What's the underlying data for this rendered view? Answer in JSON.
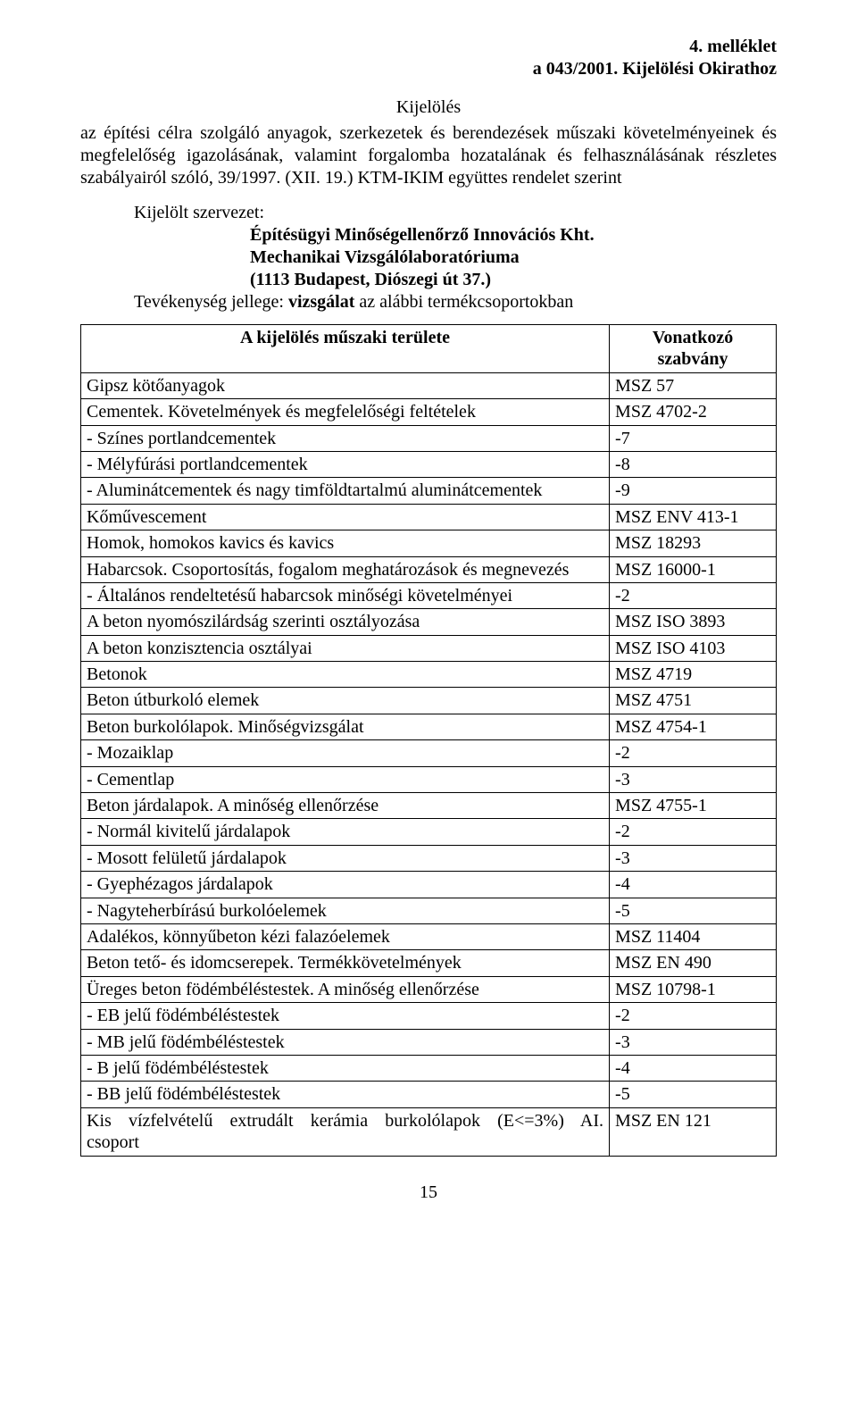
{
  "header": {
    "line1": "4. melléklet",
    "line2": "a 043/2001. Kijelölési Okirathoz"
  },
  "title": "Kijelölés",
  "intro": "az építési célra szolgáló anyagok, szerkezetek és berendezések műszaki követelményeinek és megfelelőség igazolásának, valamint forgalomba hozatalának és felhasználásának részletes szabályairól szóló, 39/1997. (XII. 19.) KTM-IKIM együttes rendelet szerint",
  "org": {
    "label": "Kijelölt szervezet:",
    "name": "Építésügyi Minőségellenőrző Innovációs Kht.",
    "lab": "Mechanikai Vizsgálólaboratóriuma",
    "addr": "(1113 Budapest, Diószegi út 37.)"
  },
  "activity": {
    "prefix": "Tevékenység jellege: ",
    "bold": "vizsgálat",
    "suffix": " az alábbi termékcsoportokban"
  },
  "table": {
    "headers": {
      "col1": "A kijelölés műszaki területe",
      "col2_a": "Vonatkozó",
      "col2_b": "szabvány"
    },
    "rows": [
      {
        "c1": "Gipsz kötőanyagok",
        "c2": "MSZ 57"
      },
      {
        "c1": "Cementek. Követelmények és megfelelőségi feltételek",
        "c2": "MSZ 4702-2"
      },
      {
        "c1": "- Színes portlandcementek",
        "c2": "-7"
      },
      {
        "c1": "- Mélyfúrási portlandcementek",
        "c2": "-8"
      },
      {
        "c1": "- Aluminátcementek és nagy timföldtartalmú aluminátcementek",
        "c2": "-9"
      },
      {
        "c1": "Kőművescement",
        "c2": "MSZ ENV 413-1"
      },
      {
        "c1": "Homok, homokos kavics és kavics",
        "c2": "MSZ 18293"
      },
      {
        "c1": "Habarcsok. Csoportosítás, fogalom meghatározások és megnevezés",
        "c2": "MSZ 16000-1"
      },
      {
        "c1": "- Általános rendeltetésű habarcsok minőségi követelményei",
        "c2": "-2"
      },
      {
        "c1": "A beton nyomószilárdság szerinti osztályozása",
        "c2": "MSZ ISO 3893"
      },
      {
        "c1": "A beton konzisztencia osztályai",
        "c2": "MSZ ISO 4103"
      },
      {
        "c1": "Betonok",
        "c2": "MSZ 4719"
      },
      {
        "c1": "Beton útburkoló elemek",
        "c2": "MSZ 4751"
      },
      {
        "c1": "Beton burkolólapok. Minőségvizsgálat",
        "c2": "MSZ 4754-1"
      },
      {
        "c1": "- Mozaiklap",
        "c2": "-2"
      },
      {
        "c1": "- Cementlap",
        "c2": "-3"
      },
      {
        "c1": "Beton járdalapok. A minőség ellenőrzése",
        "c2": "MSZ 4755-1"
      },
      {
        "c1": "- Normál kivitelű járdalapok",
        "c2": "-2"
      },
      {
        "c1": "- Mosott felületű járdalapok",
        "c2": "-3"
      },
      {
        "c1": "- Gyephézagos járdalapok",
        "c2": "-4"
      },
      {
        "c1": "- Nagyteherbírású burkolóelemek",
        "c2": "-5"
      },
      {
        "c1": "Adalékos, könnyűbeton kézi falazóelemek",
        "c2": "MSZ 11404"
      },
      {
        "c1": "Beton tető- és idomcserepek. Termékkövetelmények",
        "c2": "MSZ EN 490"
      },
      {
        "c1": "Üreges beton födémbéléstestek. A minőség ellenőrzése",
        "c2": "MSZ 10798-1"
      },
      {
        "c1": "- EB jelű födémbéléstestek",
        "c2": "-2"
      },
      {
        "c1": "- MB jelű födémbéléstestek",
        "c2": "-3"
      },
      {
        "c1": "- B jelű födémbéléstestek",
        "c2": "-4"
      },
      {
        "c1": "- BB jelű födémbéléstestek",
        "c2": "-5"
      }
    ],
    "last_row": {
      "c1_line1": "Kis vízfelvételű extrudált kerámia burkolólapok (E<=3%) AI.",
      "c1_line2": "csoport",
      "c2": "MSZ EN 121"
    }
  },
  "page_number": "15"
}
